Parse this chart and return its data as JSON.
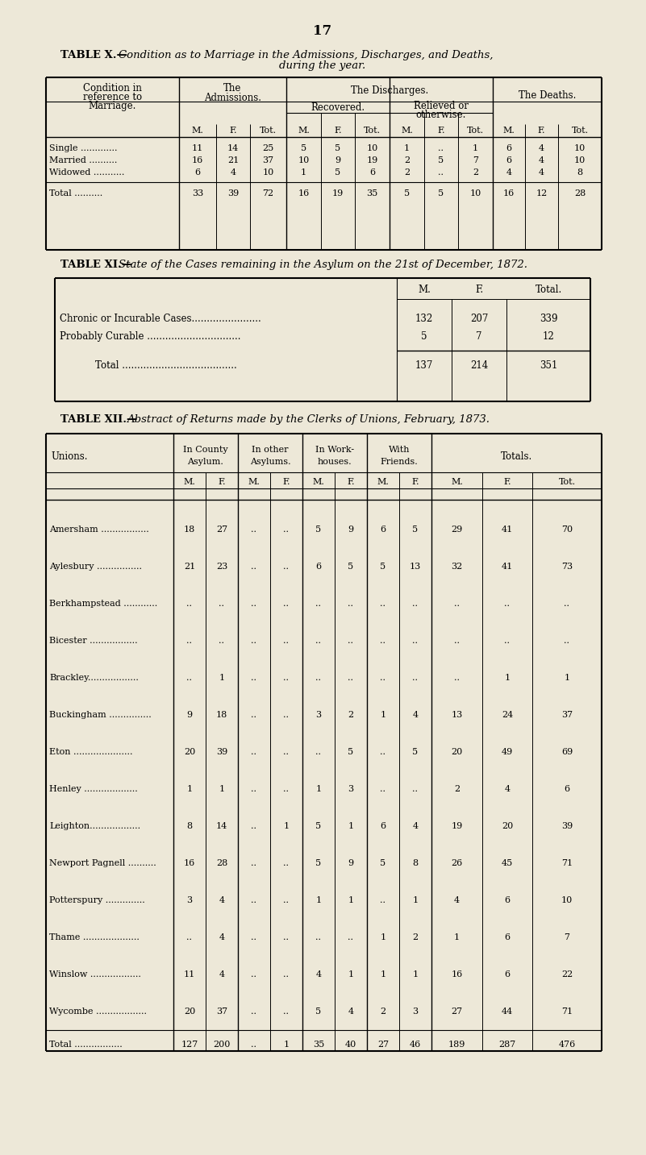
{
  "bg_color": "#ede8d8",
  "page_number": "17",
  "table_x": {
    "rows": [
      [
        "Single .............",
        "11",
        "14",
        "25",
        "5",
        "5",
        "10",
        "1",
        "..",
        "1",
        "6",
        "4",
        "10"
      ],
      [
        "Married ..........",
        "16",
        "21",
        "37",
        "10",
        "9",
        "19",
        "2",
        "5",
        "7",
        "6",
        "4",
        "10"
      ],
      [
        "Widowed ...........",
        "6",
        "4",
        "10",
        "1",
        "5",
        "6",
        "2",
        "..",
        "2",
        "4",
        "4",
        "8"
      ]
    ],
    "total_row": [
      "Total ..........",
      "33",
      "39",
      "72",
      "16",
      "19",
      "35",
      "5",
      "5",
      "10",
      "16",
      "12",
      "28"
    ]
  },
  "table_xi": {
    "rows": [
      [
        "Chronic or Incurable Cases.......................",
        "132",
        "207",
        "339"
      ],
      [
        "Probably Curable ...............................",
        "5",
        "7",
        "12"
      ]
    ],
    "total_row": [
      "Total ......................................",
      "137",
      "214",
      "351"
    ]
  },
  "table_xii": {
    "rows": [
      [
        "Amersham .................",
        "18",
        "27",
        "..",
        "..",
        "5",
        "9",
        "6",
        "5",
        "29",
        "41",
        "70"
      ],
      [
        "Aylesbury ................",
        "21",
        "23",
        "..",
        "..",
        "6",
        "5",
        "5",
        "13",
        "32",
        "41",
        "73"
      ],
      [
        "Berkhampstead ............",
        "..",
        "..",
        "..",
        "..",
        "..",
        "..",
        "..",
        "..",
        "..",
        "..",
        ".."
      ],
      [
        "Bicester .................",
        "..",
        "..",
        "..",
        "..",
        "..",
        "..",
        "..",
        "..",
        "..",
        "..",
        ".."
      ],
      [
        "Brackley..................",
        "..",
        "1",
        "..",
        "..",
        "..",
        "..",
        "..",
        "..",
        "..",
        "1",
        "1"
      ],
      [
        "Buckingham ...............",
        "9",
        "18",
        "..",
        "..",
        "3",
        "2",
        "1",
        "4",
        "13",
        "24",
        "37"
      ],
      [
        "Eton .....................",
        "20",
        "39",
        "..",
        "..",
        "..",
        "5",
        "..",
        "5",
        "20",
        "49",
        "69"
      ],
      [
        "Henley ...................",
        "1",
        "1",
        "..",
        "..",
        "1",
        "3",
        "..",
        "..",
        "2",
        "4",
        "6"
      ],
      [
        "Leighton..................",
        "8",
        "14",
        "..",
        "1",
        "5",
        "1",
        "6",
        "4",
        "19",
        "20",
        "39"
      ],
      [
        "Newport Pagnell ..........",
        "16",
        "28",
        "..",
        "..",
        "5",
        "9",
        "5",
        "8",
        "26",
        "45",
        "71"
      ],
      [
        "Potterspury ..............",
        "3",
        "4",
        "..",
        "..",
        "1",
        "1",
        "..",
        "1",
        "4",
        "6",
        "10"
      ],
      [
        "Thame ....................",
        "..",
        "4",
        "..",
        "..",
        "..",
        "..",
        "1",
        "2",
        "1",
        "6",
        "7"
      ],
      [
        "Winslow ..................",
        "11",
        "4",
        "..",
        "..",
        "4",
        "1",
        "1",
        "1",
        "16",
        "6",
        "22"
      ],
      [
        "Wycombe ..................",
        "20",
        "37",
        "..",
        "..",
        "5",
        "4",
        "2",
        "3",
        "27",
        "44",
        "71"
      ]
    ],
    "total_row": [
      "Total .................",
      "127",
      "200",
      "..",
      "1",
      "35",
      "40",
      "27",
      "46",
      "189",
      "287",
      "476"
    ]
  }
}
